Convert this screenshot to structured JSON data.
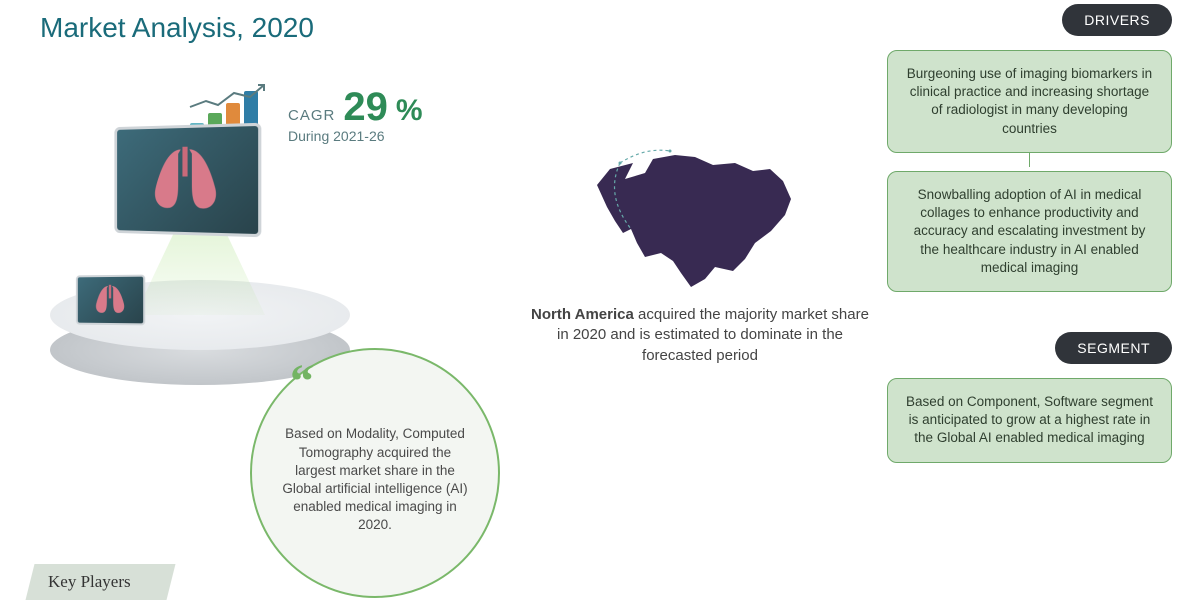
{
  "title": "Market Analysis, 2020",
  "colors": {
    "title": "#1a6b7a",
    "accent_green": "#2e8b57",
    "pill_bg": "#30343a",
    "box_bg": "#cfe3cc",
    "box_border": "#6fa96a",
    "circle_border": "#7ab86a",
    "circle_bg": "#f3f6f2",
    "screen_bg": "#29434b",
    "lungs": "#d87a8a",
    "map": "#382a52",
    "text_gray": "#5a7b7f"
  },
  "cagr": {
    "label": "CAGR",
    "value": "29",
    "pct": "%",
    "sub": "During 2021-26",
    "bars": {
      "heights": [
        22,
        32,
        42,
        54
      ],
      "colors": [
        "#63b6c4",
        "#5aa85a",
        "#e08a3c",
        "#2f7da6"
      ]
    }
  },
  "quote": {
    "text": "Based on Modality, Computed Tomography acquired the largest market share in the Global artificial intelligence (AI) enabled medical imaging in 2020."
  },
  "na": {
    "bold": "North America",
    "rest": " acquired the majority market share in 2020 and is estimated to dominate in the forecasted period"
  },
  "drivers": {
    "label": "DRIVERS",
    "box1": "Burgeoning use of imaging biomarkers in clinical practice and increasing shortage of radiologist in many developing countries",
    "box2": "Snowballing adoption of AI in medical collages to enhance productivity and accuracy and escalating investment by the healthcare industry in AI enabled medical imaging"
  },
  "segment": {
    "label": "SEGMENT",
    "box": "Based on Component, Software segment is anticipated to grow at a highest rate in the Global AI enabled medical imaging"
  },
  "key_players": "Key Players"
}
